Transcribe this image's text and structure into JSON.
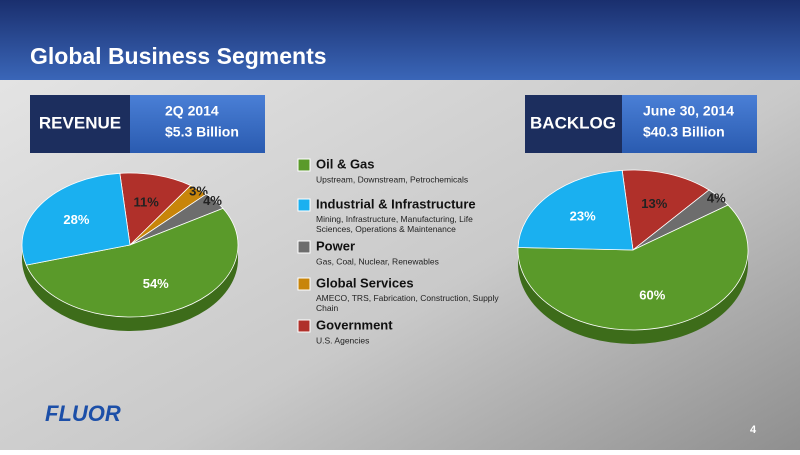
{
  "header": {
    "title": "Global Business Segments"
  },
  "legend": {
    "items": [
      {
        "name": "Oil & Gas",
        "description": "Upstream, Downstream, Petrochemicals",
        "color": "#5a9a2a"
      },
      {
        "name": "Industrial & Infrastructure",
        "description": "Mining, Infrastructure, Manufacturing, Life Sciences, Operations & Maintenance",
        "color": "#1ab0f0"
      },
      {
        "name": "Power",
        "description": "Gas, Coal, Nuclear, Renewables",
        "color": "#6d6d6d"
      },
      {
        "name": "Global Services",
        "description": "AMECO, TRS, Fabrication, Construction, Supply Chain",
        "color": "#c8850a"
      },
      {
        "name": "Government",
        "description": "U.S. Agencies",
        "color": "#b0302a"
      }
    ]
  },
  "chart_data": [
    {
      "type": "pie",
      "label": "REVENUE",
      "period": "2Q 2014",
      "amount": "$5.3 Billion",
      "values": [
        11,
        3,
        4,
        54,
        28
      ],
      "value_labels": [
        "11%",
        "3%",
        "4%",
        "54%",
        "28%"
      ],
      "colors": [
        "#b0302a",
        "#c8850a",
        "#6d6d6d",
        "#5a9a2a",
        "#1ab0f0"
      ]
    },
    {
      "type": "pie",
      "label": "BACKLOG",
      "period": "June 30, 2014",
      "amount": "$40.3 Billion",
      "values": [
        13,
        4,
        60,
        23
      ],
      "value_labels": [
        "13%",
        "4%",
        "60%",
        "23%"
      ],
      "colors": [
        "#b0302a",
        "#6d6d6d",
        "#5a9a2a",
        "#1ab0f0"
      ]
    }
  ],
  "footer": {
    "logo": "FLUOR",
    "page": "4"
  }
}
